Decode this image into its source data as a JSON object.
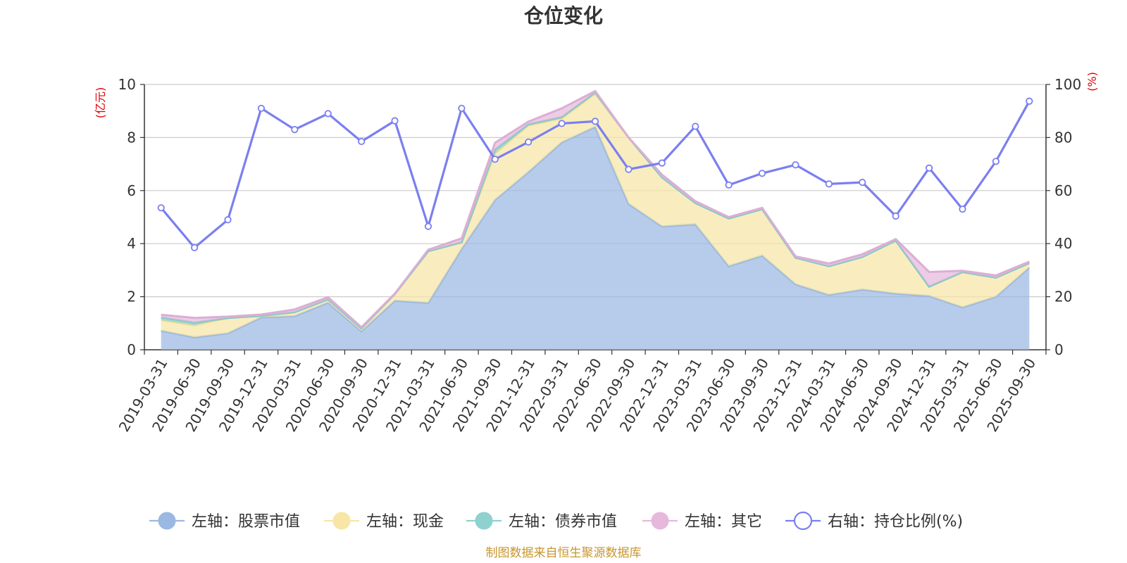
{
  "chart_data": {
    "type": "area",
    "title": "仓位变化",
    "left_unit": "(亿元)",
    "right_unit": "(%)",
    "left_ylim": [
      0,
      10
    ],
    "left_ticks": [
      "0",
      "2",
      "4",
      "6",
      "8",
      "10"
    ],
    "right_ylim": [
      0,
      100
    ],
    "right_ticks": [
      "0",
      "20",
      "40",
      "60",
      "80",
      "100"
    ],
    "categories": [
      "2019-03-31",
      "2019-06-30",
      "2019-09-30",
      "2019-12-31",
      "2020-03-31",
      "2020-06-30",
      "2020-09-30",
      "2020-12-31",
      "2021-03-31",
      "2021-06-30",
      "2021-09-30",
      "2021-12-31",
      "2022-03-31",
      "2022-06-30",
      "2022-09-30",
      "2022-12-31",
      "2023-03-31",
      "2023-06-30",
      "2023-09-30",
      "2023-12-31",
      "2024-03-31",
      "2024-06-30",
      "2024-09-30",
      "2024-12-31",
      "2025-03-31",
      "2025-06-30",
      "2025-09-30"
    ],
    "series": [
      {
        "name": "左轴：股票市值",
        "axis": "left",
        "kind": "stacked-area",
        "color": "#9bb8e2",
        "values": [
          0.72,
          0.47,
          0.62,
          1.22,
          1.27,
          1.78,
          0.7,
          1.85,
          1.77,
          3.8,
          5.65,
          6.7,
          7.82,
          8.4,
          5.5,
          4.65,
          4.73,
          3.15,
          3.55,
          2.47,
          2.07,
          2.27,
          2.12,
          2.03,
          1.6,
          2.0,
          3.1
        ]
      },
      {
        "name": "左轴：现金",
        "axis": "left",
        "kind": "stacked-area",
        "color": "#f7e6a6",
        "values": [
          0.4,
          0.45,
          0.58,
          0.06,
          0.15,
          0.12,
          0.11,
          0.25,
          1.95,
          0.25,
          1.75,
          1.75,
          0.9,
          1.25,
          2.5,
          1.85,
          0.8,
          1.8,
          1.75,
          1.0,
          1.08,
          1.23,
          2.0,
          0.35,
          1.33,
          0.72,
          0.17
        ]
      },
      {
        "name": "左轴：债券市值",
        "axis": "left",
        "kind": "stacked-area",
        "color": "#8ed1cf",
        "values": [
          0.1,
          0.1,
          0.0,
          0.0,
          0.0,
          0.0,
          0.0,
          0.0,
          0.0,
          0.0,
          0.15,
          0.05,
          0.05,
          0.05,
          0.0,
          0.0,
          0.0,
          0.0,
          0.0,
          0.0,
          0.0,
          0.0,
          0.0,
          0.0,
          0.0,
          0.0,
          0.0
        ]
      },
      {
        "name": "左轴：其它",
        "axis": "left",
        "kind": "stacked-area",
        "color": "#e6b8dc",
        "values": [
          0.1,
          0.18,
          0.05,
          0.05,
          0.1,
          0.08,
          0.04,
          0.02,
          0.05,
          0.15,
          0.25,
          0.1,
          0.33,
          0.05,
          0.0,
          0.1,
          0.07,
          0.05,
          0.05,
          0.05,
          0.1,
          0.1,
          0.05,
          0.55,
          0.05,
          0.08,
          0.05
        ]
      },
      {
        "name": "右轴：持仓比例(%)",
        "axis": "right",
        "kind": "line",
        "color": "#7b7ff0",
        "values": [
          53.5,
          38.5,
          49,
          91,
          83,
          89,
          78.5,
          86.3,
          46.5,
          91,
          71.8,
          78.3,
          85.3,
          86.1,
          68,
          70.4,
          84.2,
          62.1,
          66.5,
          69.7,
          62.5,
          63.1,
          50.4,
          68.5,
          53,
          71,
          93.7
        ]
      }
    ],
    "source_text": "制图数据来自恒生聚源数据库"
  }
}
